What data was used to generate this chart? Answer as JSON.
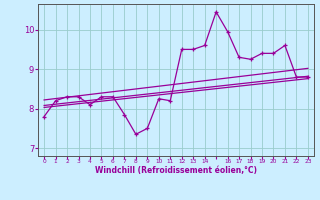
{
  "background_color": "#cceeff",
  "grid_color": "#99cccc",
  "line_color": "#990099",
  "xlabel": "Windchill (Refroidissement éolien,°C)",
  "xlim": [
    -0.5,
    23.5
  ],
  "ylim": [
    6.8,
    10.65
  ],
  "yticks": [
    7,
    8,
    9,
    10
  ],
  "main_data_x": [
    0,
    1,
    2,
    3,
    4,
    5,
    6,
    7,
    8,
    9,
    10,
    11,
    12,
    13,
    14,
    15,
    16,
    17,
    18,
    19,
    20,
    21,
    22,
    23
  ],
  "main_data_y": [
    7.8,
    8.2,
    8.3,
    8.3,
    8.1,
    8.3,
    8.3,
    7.85,
    7.35,
    7.5,
    8.25,
    8.2,
    9.5,
    9.5,
    9.6,
    10.45,
    9.95,
    9.3,
    9.25,
    9.4,
    9.4,
    9.6,
    8.8,
    8.8
  ],
  "trend1_x": [
    0,
    23
  ],
  "trend1_y": [
    8.08,
    8.82
  ],
  "trend2_x": [
    0,
    23
  ],
  "trend2_y": [
    8.22,
    9.02
  ],
  "trend3_x": [
    0,
    23
  ],
  "trend3_y": [
    8.03,
    8.76
  ]
}
